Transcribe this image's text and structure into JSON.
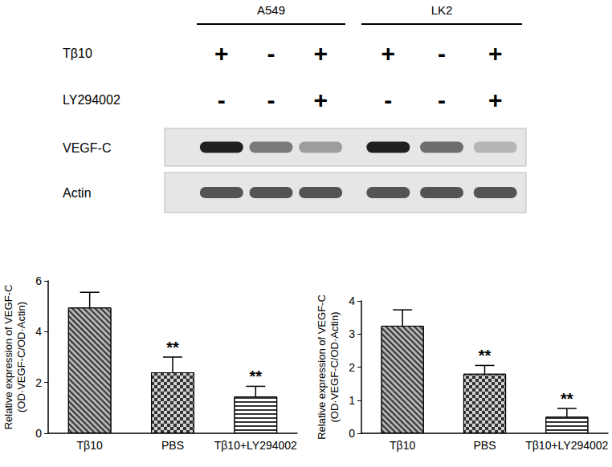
{
  "blot": {
    "groups": [
      "A549",
      "LK2"
    ],
    "treatments": [
      {
        "label": "Tβ10",
        "signs": [
          "+",
          "-",
          "+",
          "+",
          "-",
          "+"
        ]
      },
      {
        "label": "LY294002",
        "signs": [
          "-",
          "-",
          "+",
          "-",
          "-",
          "+"
        ]
      }
    ],
    "bands": [
      "VEGF-C",
      "Actin"
    ]
  },
  "chart_data": [
    {
      "type": "bar",
      "categories": [
        "Tβ10",
        "PBS",
        "Tβ10+LY294002"
      ],
      "values": [
        4.95,
        2.4,
        1.45
      ],
      "errors": [
        0.6,
        0.6,
        0.4
      ],
      "annotations": [
        null,
        "**",
        "**"
      ],
      "colors": [
        "#b4b4b4",
        "#d2d2d2",
        "#ffffff"
      ],
      "ylabel": "Relative expression of VEGF-C\n(OD·VEGF-C/OD·Actin)",
      "ylim": [
        0,
        6
      ],
      "yticks": [
        0,
        2,
        4,
        6
      ],
      "grid": false
    },
    {
      "type": "bar",
      "categories": [
        "Tβ10",
        "PBS",
        "Tβ10+LY294002"
      ],
      "values": [
        3.25,
        1.8,
        0.5
      ],
      "errors": [
        0.48,
        0.25,
        0.25
      ],
      "annotations": [
        null,
        "**",
        "**"
      ],
      "colors": [
        "#b4b4b4",
        "#d2d2d2",
        "#ffffff"
      ],
      "ylabel": "Relative expression of VEGF-C\n(OD·VEGF-C/OD·Actin)",
      "ylim": [
        0,
        4
      ],
      "yticks": [
        0,
        1,
        2,
        3,
        4
      ],
      "grid": false
    }
  ]
}
